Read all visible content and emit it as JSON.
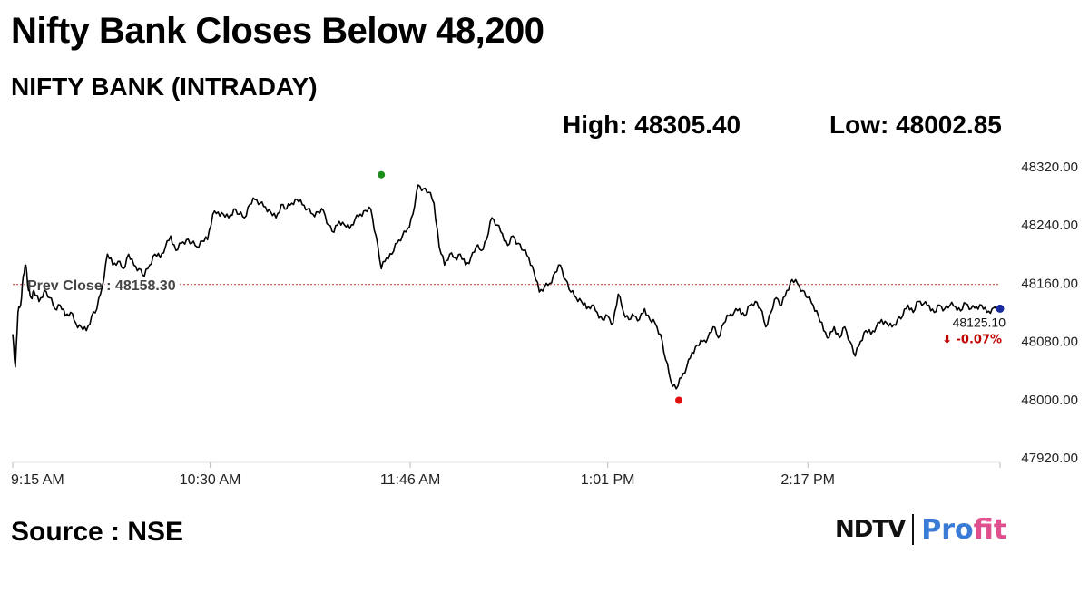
{
  "header": {
    "headline": "Nifty Bank Closes Below 48,200",
    "subtitle": "NIFTY BANK (INTRADAY)",
    "high_text": "High: 48305.40",
    "low_text": "Low: 48002.85"
  },
  "footer": {
    "source": "Source : NSE",
    "logo_main": "NDTV",
    "logo_sub_a": "Pro",
    "logo_sub_b": "fit"
  },
  "colors": {
    "line": "#000000",
    "prev_close_line": "#c0392b",
    "high_marker": "#1a8f1a",
    "low_marker": "#e01010",
    "last_marker": "#1a2a9c",
    "change_text": "#c00000",
    "axis_text": "#222222"
  },
  "chart_data": {
    "type": "line",
    "title": "NIFTY BANK (INTRADAY)",
    "xlabel": "",
    "ylabel": "",
    "grid": false,
    "ylim": [
      47920,
      48320
    ],
    "xlim": [
      "9:15",
      "15:30"
    ],
    "y_ticks": [
      48320,
      48240,
      48160,
      48080,
      48000,
      47920
    ],
    "y_tick_labels": [
      "48320.00",
      "48240.00",
      "48160.00",
      "48080.00",
      "48000.00",
      "47920.00"
    ],
    "x_ticks": [
      "9:15",
      "10:30",
      "11:46",
      "13:01",
      "14:17"
    ],
    "x_tick_labels": [
      "9:15 AM",
      "10:30 AM",
      "11:46 AM",
      "1:01 PM",
      "2:17 PM"
    ],
    "prev_close": 48158.3,
    "prev_close_label": "Prev Close : 48158.30",
    "high": {
      "x": "11:35",
      "y": 48305.4
    },
    "low": {
      "x": "13:28",
      "y": 48002.85
    },
    "last": {
      "x": "15:30",
      "y": 48125.1,
      "label": "48125.10",
      "change_label": "⬇ -0.07%"
    },
    "series": [
      {
        "values": [
          [
            "9:15",
            48090
          ],
          [
            "9:16",
            48045
          ],
          [
            "9:17",
            48120
          ],
          [
            "9:18",
            48130
          ],
          [
            "9:19",
            48170
          ],
          [
            "9:20",
            48185
          ],
          [
            "9:21",
            48150
          ],
          [
            "9:22",
            48140
          ],
          [
            "9:23",
            48150
          ],
          [
            "9:25",
            48135
          ],
          [
            "9:27",
            48150
          ],
          [
            "9:29",
            48140
          ],
          [
            "9:31",
            48125
          ],
          [
            "9:33",
            48130
          ],
          [
            "9:35",
            48115
          ],
          [
            "9:37",
            48120
          ],
          [
            "9:39",
            48105
          ],
          [
            "9:41",
            48100
          ],
          [
            "9:43",
            48095
          ],
          [
            "9:45",
            48115
          ],
          [
            "9:47",
            48125
          ],
          [
            "9:49",
            48155
          ],
          [
            "9:51",
            48200
          ],
          [
            "9:53",
            48185
          ],
          [
            "9:55",
            48190
          ],
          [
            "9:57",
            48180
          ],
          [
            "9:59",
            48200
          ],
          [
            "10:01",
            48185
          ],
          [
            "10:03",
            48180
          ],
          [
            "10:05",
            48170
          ],
          [
            "10:07",
            48185
          ],
          [
            "10:09",
            48200
          ],
          [
            "10:11",
            48195
          ],
          [
            "10:13",
            48210
          ],
          [
            "10:15",
            48225
          ],
          [
            "10:17",
            48205
          ],
          [
            "10:19",
            48215
          ],
          [
            "10:21",
            48220
          ],
          [
            "10:23",
            48215
          ],
          [
            "10:25",
            48210
          ],
          [
            "10:27",
            48218
          ],
          [
            "10:29",
            48220
          ],
          [
            "10:31",
            48255
          ],
          [
            "10:33",
            48258
          ],
          [
            "10:35",
            48255
          ],
          [
            "10:37",
            48250
          ],
          [
            "10:39",
            48262
          ],
          [
            "10:41",
            48255
          ],
          [
            "10:43",
            48250
          ],
          [
            "10:45",
            48268
          ],
          [
            "10:47",
            48275
          ],
          [
            "10:49",
            48270
          ],
          [
            "10:51",
            48265
          ],
          [
            "10:53",
            48258
          ],
          [
            "10:55",
            48250
          ],
          [
            "10:57",
            48268
          ],
          [
            "10:59",
            48262
          ],
          [
            "11:01",
            48270
          ],
          [
            "11:03",
            48275
          ],
          [
            "11:05",
            48268
          ],
          [
            "11:07",
            48262
          ],
          [
            "11:09",
            48255
          ],
          [
            "11:11",
            48258
          ],
          [
            "11:13",
            48260
          ],
          [
            "11:15",
            48240
          ],
          [
            "11:17",
            48230
          ],
          [
            "11:19",
            48245
          ],
          [
            "11:21",
            48240
          ],
          [
            "11:23",
            48235
          ],
          [
            "11:25",
            48248
          ],
          [
            "11:27",
            48255
          ],
          [
            "11:29",
            48260
          ],
          [
            "11:31",
            48262
          ],
          [
            "11:33",
            48225
          ],
          [
            "11:35",
            48180
          ],
          [
            "11:37",
            48195
          ],
          [
            "11:39",
            48200
          ],
          [
            "11:41",
            48215
          ],
          [
            "11:43",
            48225
          ],
          [
            "11:45",
            48235
          ],
          [
            "11:47",
            48255
          ],
          [
            "11:49",
            48295
          ],
          [
            "11:51",
            48290
          ],
          [
            "11:53",
            48285
          ],
          [
            "11:55",
            48270
          ],
          [
            "11:57",
            48210
          ],
          [
            "11:59",
            48185
          ],
          [
            "12:01",
            48200
          ],
          [
            "12:03",
            48195
          ],
          [
            "12:05",
            48200
          ],
          [
            "12:07",
            48185
          ],
          [
            "12:09",
            48195
          ],
          [
            "12:11",
            48210
          ],
          [
            "12:13",
            48205
          ],
          [
            "12:15",
            48220
          ],
          [
            "12:17",
            48250
          ],
          [
            "12:19",
            48240
          ],
          [
            "12:21",
            48228
          ],
          [
            "12:23",
            48212
          ],
          [
            "12:25",
            48225
          ],
          [
            "12:27",
            48215
          ],
          [
            "12:29",
            48205
          ],
          [
            "12:31",
            48195
          ],
          [
            "12:33",
            48175
          ],
          [
            "12:35",
            48148
          ],
          [
            "12:37",
            48155
          ],
          [
            "12:39",
            48160
          ],
          [
            "12:41",
            48175
          ],
          [
            "12:43",
            48185
          ],
          [
            "12:45",
            48165
          ],
          [
            "12:47",
            48148
          ],
          [
            "12:49",
            48140
          ],
          [
            "12:51",
            48135
          ],
          [
            "12:53",
            48125
          ],
          [
            "12:55",
            48130
          ],
          [
            "12:57",
            48120
          ],
          [
            "12:59",
            48110
          ],
          [
            "13:01",
            48115
          ],
          [
            "13:03",
            48105
          ],
          [
            "13:05",
            48145
          ],
          [
            "13:07",
            48120
          ],
          [
            "13:09",
            48110
          ],
          [
            "13:11",
            48115
          ],
          [
            "13:13",
            48110
          ],
          [
            "13:15",
            48125
          ],
          [
            "13:17",
            48110
          ],
          [
            "13:19",
            48105
          ],
          [
            "13:21",
            48090
          ],
          [
            "13:23",
            48055
          ],
          [
            "13:25",
            48025
          ],
          [
            "13:27",
            48015
          ],
          [
            "13:29",
            48030
          ],
          [
            "13:31",
            48045
          ],
          [
            "13:33",
            48065
          ],
          [
            "13:35",
            48075
          ],
          [
            "13:37",
            48080
          ],
          [
            "13:39",
            48085
          ],
          [
            "13:41",
            48100
          ],
          [
            "13:43",
            48085
          ],
          [
            "13:45",
            48105
          ],
          [
            "13:47",
            48115
          ],
          [
            "13:49",
            48120
          ],
          [
            "13:51",
            48125
          ],
          [
            "13:53",
            48115
          ],
          [
            "13:55",
            48130
          ],
          [
            "13:57",
            48135
          ],
          [
            "13:59",
            48125
          ],
          [
            "14:01",
            48100
          ],
          [
            "14:03",
            48120
          ],
          [
            "14:05",
            48140
          ],
          [
            "14:07",
            48130
          ],
          [
            "14:09",
            48150
          ],
          [
            "14:11",
            48165
          ],
          [
            "14:13",
            48160
          ],
          [
            "14:15",
            48150
          ],
          [
            "14:17",
            48140
          ],
          [
            "14:19",
            48130
          ],
          [
            "14:21",
            48115
          ],
          [
            "14:23",
            48095
          ],
          [
            "14:25",
            48085
          ],
          [
            "14:27",
            48100
          ],
          [
            "14:29",
            48085
          ],
          [
            "14:31",
            48100
          ],
          [
            "14:33",
            48080
          ],
          [
            "14:35",
            48060
          ],
          [
            "14:37",
            48080
          ],
          [
            "14:39",
            48095
          ],
          [
            "14:41",
            48090
          ],
          [
            "14:43",
            48100
          ],
          [
            "14:45",
            48110
          ],
          [
            "14:47",
            48105
          ],
          [
            "14:49",
            48100
          ],
          [
            "14:51",
            48110
          ],
          [
            "14:53",
            48115
          ],
          [
            "14:55",
            48130
          ],
          [
            "14:57",
            48120
          ],
          [
            "14:59",
            48135
          ],
          [
            "15:01",
            48132
          ],
          [
            "15:03",
            48130
          ],
          [
            "15:05",
            48120
          ],
          [
            "15:07",
            48130
          ],
          [
            "15:09",
            48125
          ],
          [
            "15:11",
            48130
          ],
          [
            "15:13",
            48128
          ],
          [
            "15:15",
            48122
          ],
          [
            "15:17",
            48132
          ],
          [
            "15:19",
            48125
          ],
          [
            "15:21",
            48128
          ],
          [
            "15:23",
            48130
          ],
          [
            "15:25",
            48120
          ],
          [
            "15:27",
            48125
          ],
          [
            "15:30",
            48125.1
          ]
        ]
      }
    ]
  }
}
